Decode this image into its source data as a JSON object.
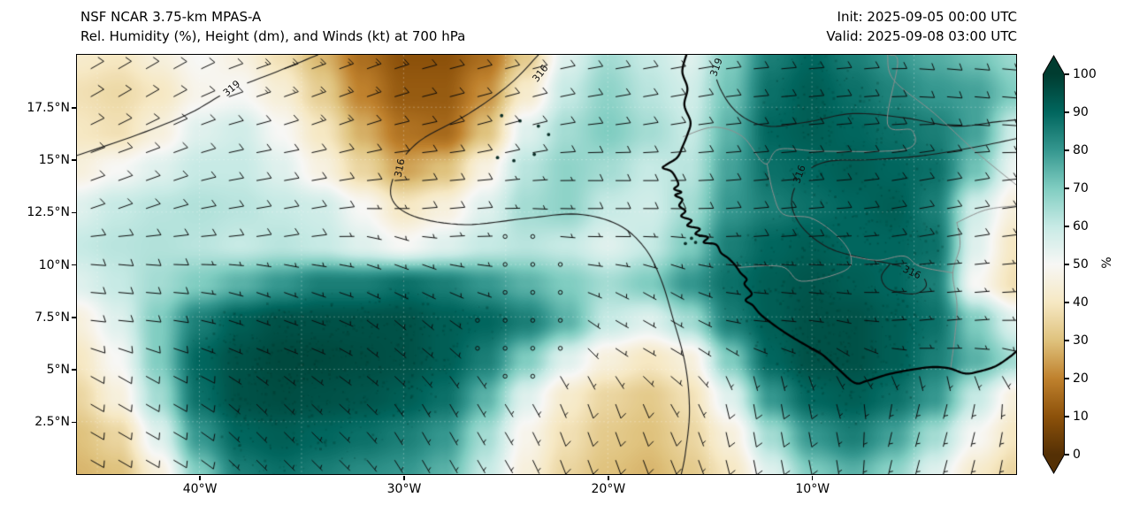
{
  "header": {
    "model": "NSF NCAR 3.75-km MPAS-A",
    "field": "Rel. Humidity (%), Height (dm), and Winds (kt) at 700 hPa",
    "init": "Init: 2025-09-05 00:00 UTC",
    "valid": "Valid: 2025-09-08 03:00 UTC"
  },
  "chart_data": {
    "type": "heatmap",
    "title": "Rel. Humidity (%), Height (dm), and Winds (kt) at 700 hPa",
    "x_axis": {
      "range": [
        -46,
        0
      ],
      "ticks": [
        -40,
        -30,
        -20,
        -10
      ],
      "tick_labels": [
        "40°W",
        "30°W",
        "20°W",
        "10°W"
      ]
    },
    "y_axis": {
      "range": [
        0,
        20
      ],
      "ticks": [
        17.5,
        15,
        12.5,
        10,
        7.5,
        5,
        2.5
      ],
      "tick_labels": [
        "17.5°N",
        "15°N",
        "12.5°N",
        "10°N",
        "7.5°N",
        "5°N",
        "2.5°N"
      ]
    },
    "colorbar": {
      "label": "%",
      "range": [
        0,
        100
      ],
      "ticks": [
        0,
        10,
        20,
        30,
        40,
        50,
        60,
        70,
        80,
        90,
        100
      ],
      "colormap": "BrBG",
      "stops": [
        {
          "v": 0,
          "c": "#543005"
        },
        {
          "v": 10,
          "c": "#8c510a"
        },
        {
          "v": 20,
          "c": "#bf812d"
        },
        {
          "v": 30,
          "c": "#dfc27d"
        },
        {
          "v": 40,
          "c": "#f6e8c3"
        },
        {
          "v": 50,
          "c": "#f7f7f5"
        },
        {
          "v": 60,
          "c": "#c7eae5"
        },
        {
          "v": 70,
          "c": "#80cdc1"
        },
        {
          "v": 80,
          "c": "#35978f"
        },
        {
          "v": 90,
          "c": "#01665e"
        },
        {
          "v": 100,
          "c": "#003c30"
        }
      ]
    },
    "rh_grid": {
      "units": "%",
      "lon_min": -46,
      "lon_max": 0,
      "lat_min": 0,
      "lat_max": 20,
      "values": [
        [
          42,
          40,
          45,
          50,
          46,
          38,
          28,
          16,
          10,
          10,
          16,
          32,
          55,
          65,
          60,
          55,
          70,
          85,
          90,
          85,
          80,
          76,
          72,
          66
        ],
        [
          38,
          36,
          40,
          48,
          50,
          44,
          33,
          20,
          12,
          12,
          22,
          42,
          60,
          68,
          62,
          58,
          72,
          88,
          92,
          88,
          84,
          80,
          78,
          70
        ],
        [
          40,
          38,
          45,
          55,
          58,
          50,
          40,
          27,
          17,
          15,
          30,
          55,
          65,
          70,
          65,
          60,
          75,
          90,
          92,
          90,
          88,
          85,
          78,
          58
        ],
        [
          45,
          50,
          55,
          60,
          60,
          55,
          46,
          35,
          25,
          30,
          46,
          62,
          68,
          65,
          60,
          62,
          78,
          88,
          90,
          92,
          90,
          88,
          72,
          52
        ],
        [
          55,
          60,
          62,
          63,
          62,
          60,
          58,
          50,
          40,
          45,
          55,
          65,
          68,
          60,
          58,
          65,
          80,
          85,
          88,
          90,
          92,
          85,
          58,
          45
        ],
        [
          60,
          62,
          63,
          62,
          60,
          62,
          60,
          55,
          50,
          55,
          60,
          62,
          60,
          55,
          60,
          70,
          85,
          90,
          92,
          90,
          90,
          88,
          55,
          40
        ],
        [
          55,
          60,
          65,
          70,
          75,
          80,
          85,
          85,
          88,
          85,
          80,
          75,
          70,
          65,
          70,
          80,
          88,
          92,
          94,
          92,
          90,
          85,
          50,
          38
        ],
        [
          45,
          55,
          70,
          85,
          92,
          95,
          95,
          95,
          95,
          92,
          90,
          85,
          75,
          60,
          55,
          65,
          85,
          92,
          95,
          95,
          92,
          88,
          70,
          55
        ],
        [
          40,
          50,
          70,
          90,
          95,
          97,
          97,
          96,
          95,
          92,
          85,
          70,
          55,
          45,
          40,
          45,
          70,
          90,
          95,
          95,
          92,
          85,
          75,
          65
        ],
        [
          35,
          45,
          65,
          88,
          95,
          96,
          95,
          94,
          92,
          88,
          75,
          55,
          42,
          35,
          32,
          38,
          55,
          80,
          90,
          92,
          88,
          80,
          60,
          45
        ],
        [
          30,
          35,
          55,
          80,
          90,
          92,
          90,
          88,
          85,
          80,
          65,
          48,
          38,
          32,
          30,
          35,
          45,
          65,
          80,
          85,
          78,
          65,
          50,
          40
        ],
        [
          28,
          30,
          45,
          70,
          85,
          88,
          85,
          82,
          80,
          75,
          60,
          45,
          35,
          30,
          28,
          32,
          40,
          55,
          70,
          75,
          68,
          55,
          42,
          35
        ]
      ]
    },
    "height_contours": {
      "units": "dm",
      "lines": [
        {
          "value": 319,
          "points": [
            [
              -46,
              15.2
            ],
            [
              -43,
              16.2
            ],
            [
              -40.5,
              17.2
            ],
            [
              -38.5,
              18.3
            ],
            [
              -36.2,
              19.2
            ],
            [
              -34.2,
              20
            ]
          ]
        },
        {
          "value": 316,
          "points": [
            [
              -23.4,
              20
            ],
            [
              -24.8,
              18.6
            ],
            [
              -26.8,
              17.2
            ],
            [
              -29.2,
              15.9
            ],
            [
              -30.3,
              14.6
            ],
            [
              -30.6,
              13.2
            ],
            [
              -29.5,
              12.3
            ],
            [
              -27,
              11.9
            ],
            [
              -24,
              12.2
            ],
            [
              -21.5,
              12.4
            ],
            [
              -19.5,
              11.9
            ],
            [
              -18.2,
              10.8
            ],
            [
              -17.4,
              9.3
            ],
            [
              -16.8,
              7.4
            ],
            [
              -16.2,
              5.2
            ],
            [
              -16.0,
              3.0
            ],
            [
              -16.2,
              1.0
            ],
            [
              -16.4,
              0
            ]
          ]
        },
        {
          "value": 319,
          "points": [
            [
              -15.0,
              20
            ],
            [
              -14.5,
              18.4
            ],
            [
              -13.6,
              17.2
            ],
            [
              -12.2,
              16.6
            ],
            [
              -10.2,
              16.8
            ],
            [
              -8.0,
              17.2
            ],
            [
              -5.5,
              17.0
            ],
            [
              -3.0,
              16.6
            ],
            [
              -1.0,
              16.8
            ],
            [
              0,
              16.9
            ]
          ]
        },
        {
          "value": 316,
          "points": [
            [
              0,
              16.0
            ],
            [
              -2.0,
              15.6
            ],
            [
              -4.5,
              15.2
            ],
            [
              -7.0,
              15.0
            ],
            [
              -9.3,
              14.9
            ],
            [
              -10.5,
              14.2
            ],
            [
              -11.0,
              13.0
            ],
            [
              -10.5,
              11.8
            ],
            [
              -9.2,
              10.8
            ],
            [
              -7.5,
              10.3
            ],
            [
              -6.0,
              10.0
            ],
            [
              -4.8,
              9.6
            ],
            [
              -4.4,
              9.0
            ],
            [
              -5.0,
              8.6
            ],
            [
              -6.2,
              8.8
            ],
            [
              -6.6,
              9.4
            ],
            [
              -6.2,
              10.0
            ]
          ]
        }
      ],
      "labels": [
        {
          "text": "319",
          "lon": -38.4,
          "lat": 18.4,
          "angle": -40
        },
        {
          "text": "316",
          "lon": -30.2,
          "lat": 14.6,
          "angle": -78
        },
        {
          "text": "316",
          "lon": -23.3,
          "lat": 19.1,
          "angle": -52
        },
        {
          "text": "319",
          "lon": -14.7,
          "lat": 19.4,
          "angle": -70
        },
        {
          "text": "316",
          "lon": -10.6,
          "lat": 14.3,
          "angle": -70
        },
        {
          "text": "316",
          "lon": -5.1,
          "lat": 9.6,
          "angle": 25
        }
      ]
    },
    "wind": {
      "units": "kt",
      "calm_threshold_kt": 2.5,
      "barb_grid": {
        "nx": 34,
        "ny": 15
      },
      "control_points_format": [
        "lon",
        "lat",
        "dir_from_deg",
        "speed_kt"
      ],
      "control_points": [
        [
          -44,
          19,
          60,
          12
        ],
        [
          -34,
          19,
          70,
          14
        ],
        [
          -26,
          18,
          75,
          12
        ],
        [
          -18,
          19,
          80,
          10
        ],
        [
          -10,
          19,
          85,
          12
        ],
        [
          -2,
          19,
          95,
          10
        ],
        [
          -44,
          14,
          70,
          10
        ],
        [
          -36,
          13,
          80,
          10
        ],
        [
          -28,
          13,
          85,
          8
        ],
        [
          -20,
          13,
          90,
          8
        ],
        [
          -12,
          13,
          85,
          8
        ],
        [
          -4,
          13,
          80,
          8
        ],
        [
          -44,
          9,
          95,
          8
        ],
        [
          -36,
          8,
          110,
          5
        ],
        [
          -30,
          7,
          130,
          3
        ],
        [
          -24,
          6,
          150,
          2
        ],
        [
          -18,
          7,
          120,
          5
        ],
        [
          -12,
          8,
          95,
          6
        ],
        [
          -4,
          8,
          85,
          7
        ],
        [
          -44,
          3,
          120,
          10
        ],
        [
          -36,
          2,
          135,
          7
        ],
        [
          -28,
          2,
          150,
          6
        ],
        [
          -20,
          2,
          160,
          9
        ],
        [
          -12,
          3,
          170,
          8
        ],
        [
          -4,
          2,
          195,
          7
        ],
        [
          -24,
          10,
          100,
          2
        ],
        [
          -30,
          10,
          110,
          3
        ]
      ]
    },
    "coastline": [
      [
        -16.15,
        20
      ],
      [
        -16.35,
        19.2
      ],
      [
        -16.1,
        18.4
      ],
      [
        -16.25,
        17.6
      ],
      [
        -15.95,
        16.8
      ],
      [
        -16.1,
        16.2
      ],
      [
        -16.35,
        15.6
      ],
      [
        -16.6,
        15.1
      ],
      [
        -17.15,
        14.75
      ],
      [
        -17.3,
        14.6
      ],
      [
        -16.9,
        14.45
      ],
      [
        -16.65,
        14.1
      ],
      [
        -16.55,
        13.8
      ],
      [
        -16.75,
        13.6
      ],
      [
        -16.4,
        13.45
      ],
      [
        -16.7,
        13.3
      ],
      [
        -16.35,
        13.1
      ],
      [
        -16.5,
        12.8
      ],
      [
        -16.2,
        12.55
      ],
      [
        -16.4,
        12.3
      ],
      [
        -15.9,
        12.1
      ],
      [
        -16.1,
        11.85
      ],
      [
        -15.5,
        11.7
      ],
      [
        -15.7,
        11.45
      ],
      [
        -15.1,
        11.3
      ],
      [
        -15.3,
        11.05
      ],
      [
        -14.7,
        10.95
      ],
      [
        -14.45,
        10.55
      ],
      [
        -14.1,
        10.3
      ],
      [
        -13.75,
        9.95
      ],
      [
        -13.5,
        9.6
      ],
      [
        -13.2,
        9.3
      ],
      [
        -13.3,
        9.05
      ],
      [
        -12.95,
        8.6
      ],
      [
        -13.25,
        8.3
      ],
      [
        -12.9,
        8.05
      ],
      [
        -12.5,
        7.6
      ],
      [
        -11.7,
        7.0
      ],
      [
        -11.0,
        6.55
      ],
      [
        -10.3,
        6.15
      ],
      [
        -9.5,
        5.7
      ],
      [
        -8.7,
        5.0
      ],
      [
        -7.9,
        4.35
      ],
      [
        -7.3,
        4.45
      ],
      [
        -6.3,
        4.75
      ],
      [
        -5.3,
        4.95
      ],
      [
        -4.2,
        5.1
      ],
      [
        -3.3,
        5.05
      ],
      [
        -2.5,
        4.8
      ],
      [
        -1.8,
        4.9
      ],
      [
        -1.0,
        5.15
      ],
      [
        -0.3,
        5.6
      ],
      [
        0,
        5.85
      ]
    ],
    "borders": [
      [
        [
          -16.3,
          16.1
        ],
        [
          -14.8,
          16.55
        ],
        [
          -13.4,
          16.1
        ],
        [
          -12.3,
          14.8
        ],
        [
          -11.6,
          15.5
        ],
        [
          -9.4,
          15.4
        ],
        [
          -5.4,
          15.5
        ],
        [
          -5.1,
          16.4
        ],
        [
          -6.3,
          16.7
        ],
        [
          -5.8,
          19.6
        ],
        [
          -6.2,
          20
        ]
      ],
      [
        [
          -12.2,
          14.8
        ],
        [
          -11.9,
          13.4
        ],
        [
          -11.4,
          12.4
        ],
        [
          -10.0,
          12.2
        ],
        [
          -8.7,
          11.3
        ],
        [
          -8.1,
          10.4
        ],
        [
          -8.4,
          9.7
        ],
        [
          -10.5,
          9.2
        ],
        [
          -11.5,
          9.9
        ],
        [
          -13.7,
          9.85
        ]
      ],
      [
        [
          -3.2,
          5.1
        ],
        [
          -3.0,
          6.6
        ],
        [
          -2.9,
          8.1
        ],
        [
          -3.1,
          9.6
        ],
        [
          -2.75,
          10.9
        ],
        [
          -2.9,
          12.0
        ]
      ],
      [
        [
          -8.1,
          10.4
        ],
        [
          -6.8,
          10.2
        ],
        [
          -5.5,
          10.4
        ],
        [
          -4.7,
          9.9
        ],
        [
          -3.1,
          9.6
        ]
      ],
      [
        [
          -2.9,
          12.0
        ],
        [
          -1.5,
          12.6
        ],
        [
          0,
          12.8
        ]
      ],
      [
        [
          -6.3,
          20
        ],
        [
          -6.0,
          18.8
        ],
        [
          -4.0,
          17.2
        ],
        [
          -2.0,
          15.4
        ],
        [
          0,
          13.8
        ]
      ]
    ],
    "islands": [
      [
        -25.2,
        17.1
      ],
      [
        -24.3,
        16.85
      ],
      [
        -23.4,
        16.6
      ],
      [
        -22.9,
        16.2
      ],
      [
        -25.4,
        15.1
      ],
      [
        -24.6,
        14.95
      ],
      [
        -23.6,
        15.25
      ],
      [
        -15.9,
        11.25
      ],
      [
        -16.2,
        11.0
      ],
      [
        -15.7,
        11.05
      ]
    ],
    "gridlines": {
      "lons": [
        -45,
        -40,
        -35,
        -30,
        -25,
        -20,
        -15,
        -10,
        -5
      ],
      "lats": [
        2.5,
        5,
        7.5,
        10,
        12.5,
        15,
        17.5
      ]
    }
  }
}
